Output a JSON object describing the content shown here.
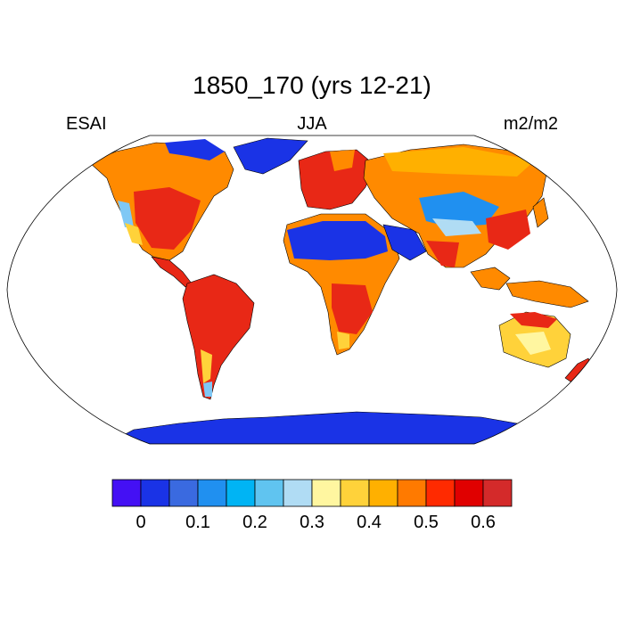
{
  "plot": {
    "title": "1850_170 (yrs 12-21)",
    "left_label": "ESAI",
    "center_label": "JJA",
    "right_label": "m2/m2"
  },
  "map": {
    "projection": "robinson",
    "colors": {
      "ocean": "#ffffff",
      "coastline": "#000000",
      "desert_low": "#1a33e6",
      "mid_low": "#7fc8f5",
      "mid": "#ffd23a",
      "mid_high": "#ff8a00",
      "high": "#e82816",
      "very_high": "#d42a2a"
    }
  },
  "colorbar": {
    "colors": [
      "#4410f4",
      "#1a33e6",
      "#3a6ae0",
      "#2090f0",
      "#00b4f4",
      "#60c4f0",
      "#b0dcf4",
      "#fff6a0",
      "#ffd23a",
      "#ffb000",
      "#ff7a00",
      "#ff2a00",
      "#e00000",
      "#d42a2a"
    ],
    "tick_labels": [
      "0",
      "0.1",
      "0.2",
      "0.3",
      "0.4",
      "0.5",
      "0.6"
    ],
    "tick_values": [
      0,
      0.1,
      0.2,
      0.3,
      0.4,
      0.5,
      0.6
    ]
  }
}
